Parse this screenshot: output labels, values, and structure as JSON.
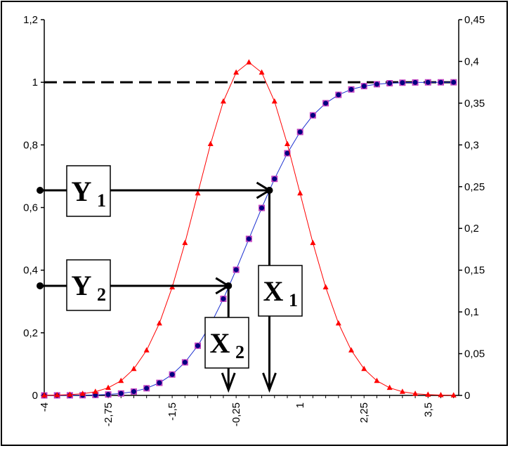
{
  "chart_data": {
    "type": "line",
    "title": "",
    "xlabel": "",
    "ylabel": "",
    "x": [
      -4,
      -3.75,
      -3.5,
      -3.25,
      -3,
      -2.75,
      -2.5,
      -2.25,
      -2,
      -1.75,
      -1.5,
      -1.25,
      -1,
      -0.75,
      -0.5,
      -0.25,
      0,
      0.25,
      0.5,
      0.75,
      1,
      1.25,
      1.5,
      1.75,
      2,
      2.25,
      2.5,
      2.75,
      3,
      3.25,
      3.5,
      3.75,
      4
    ],
    "x_tick_labels": [
      "-4",
      "-2,75",
      "-1,5",
      "-0,25",
      "1",
      "2,25",
      "3,5"
    ],
    "x_tick_values": [
      -4,
      -2.75,
      -1.5,
      -0.25,
      1,
      2.25,
      3.5
    ],
    "y_left": {
      "ylim": [
        0,
        1.2
      ],
      "tick_values": [
        0,
        0.2,
        0.4,
        0.6,
        0.8,
        1,
        1.2
      ],
      "tick_labels": [
        "0",
        "0,2",
        "0,4",
        "0,6",
        "0,8",
        "1",
        "1,2"
      ]
    },
    "y_right": {
      "ylim": [
        0,
        0.45
      ],
      "tick_values": [
        0,
        0.05,
        0.1,
        0.15,
        0.2,
        0.25,
        0.3,
        0.35,
        0.4,
        0.45
      ],
      "tick_labels": [
        "0",
        "0,05",
        "0,1",
        "0,15",
        "0,2",
        "0,25",
        "0,3",
        "0,35",
        "0,4",
        "0,45"
      ]
    },
    "series": [
      {
        "axis": "left",
        "color": "#1a2fd0",
        "marker_fill": "#000080",
        "marker_edge": "#c040c0",
        "marker": "square",
        "values": [
          0.0,
          0.0001,
          0.0002,
          0.0006,
          0.0013,
          0.003,
          0.0062,
          0.0122,
          0.0228,
          0.0401,
          0.0668,
          0.1056,
          0.1587,
          0.2266,
          0.3085,
          0.4013,
          0.5,
          0.5987,
          0.6915,
          0.7734,
          0.8413,
          0.8944,
          0.9332,
          0.9599,
          0.9772,
          0.9878,
          0.9938,
          0.997,
          0.9987,
          0.9994,
          0.9998,
          0.9999,
          1.0
        ]
      },
      {
        "axis": "right",
        "color": "#ff0000",
        "marker": "triangle",
        "values": [
          0.0001,
          0.0004,
          0.0009,
          0.002,
          0.0044,
          0.0091,
          0.0175,
          0.0317,
          0.054,
          0.0863,
          0.1295,
          0.1826,
          0.242,
          0.3011,
          0.3521,
          0.3867,
          0.3989,
          0.3867,
          0.3521,
          0.3011,
          0.242,
          0.1826,
          0.1295,
          0.0863,
          0.054,
          0.0317,
          0.0175,
          0.0091,
          0.0044,
          0.002,
          0.0009,
          0.0004,
          0.0001
        ]
      }
    ],
    "reference_line": {
      "axis": "left",
      "value": 1,
      "style": "dashed"
    },
    "annotations": [
      {
        "label": "Y",
        "subscript": "1",
        "y": 0.655,
        "x_target": 0.4
      },
      {
        "label": "Y",
        "subscript": "2",
        "y": 0.35,
        "x_target": -0.4
      },
      {
        "label": "X",
        "subscript": "1",
        "x": 0.4
      },
      {
        "label": "X",
        "subscript": "2",
        "x": -0.4
      }
    ],
    "grid": false,
    "legend": "none"
  }
}
